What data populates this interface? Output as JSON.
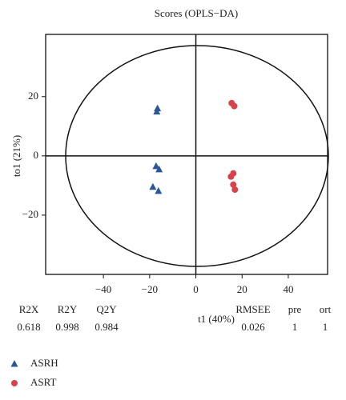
{
  "chart_data": {
    "type": "scatter",
    "title": "Scores (OPLS−DA)",
    "x_label": "t1 (40%)",
    "y_label": "to1 (21%)",
    "xlim": [
      -65,
      57
    ],
    "ylim": [
      -40,
      41
    ],
    "xticks": [
      {
        "value": -40,
        "label": "−40"
      },
      {
        "value": -20,
        "label": "−20"
      },
      0,
      20,
      40
    ],
    "yticks": [
      {
        "value": -20,
        "label": "−20"
      },
      0,
      20
    ],
    "series": [
      {
        "name": "ASRH",
        "color": "#2b5797",
        "marker": "triangle",
        "x": [
          -16.6,
          -16.9,
          -17.2,
          -15.9,
          -18.6,
          -16.2
        ],
        "values": [
          16,
          14.9,
          -3.5,
          -4.6,
          -10.5,
          -11.9
        ]
      },
      {
        "name": "ASRT",
        "color": "#d9424b",
        "marker": "circle",
        "x": [
          15.5,
          16.6,
          15.2,
          16.2,
          16.2,
          16.9
        ],
        "values": [
          17.8,
          16.8,
          -7,
          -5.9,
          -9.7,
          -11.4
        ]
      }
    ],
    "stats": [
      {
        "label": "R2X",
        "value": 0.618
      },
      {
        "label": "R2Y",
        "value": 0.998
      },
      {
        "label": "Q2Y",
        "value": 0.984
      },
      {
        "label": "RMSEE",
        "value": 0.026
      },
      {
        "label": "pre",
        "value": 1
      },
      {
        "label": "ort",
        "value": 1
      }
    ]
  }
}
